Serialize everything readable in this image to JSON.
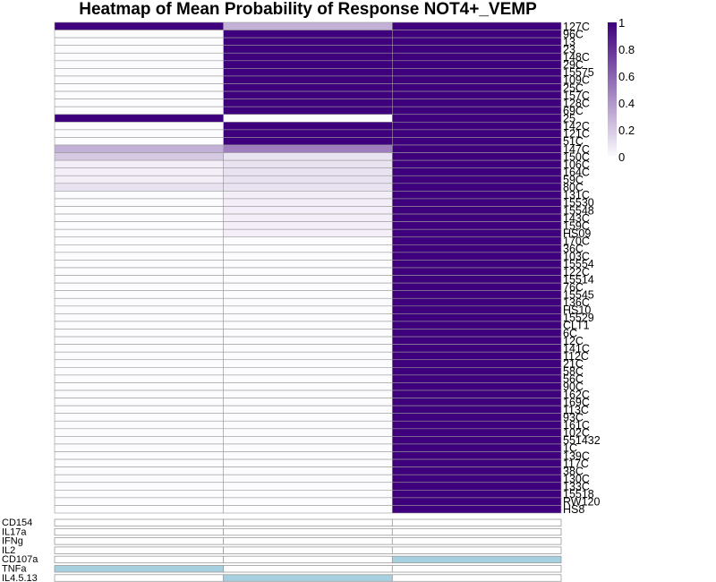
{
  "chart_data": {
    "type": "heatmap",
    "title": "Heatmap of Mean Probability of Response NOT4+_VEMP",
    "columns": 3,
    "rows": [
      "127C",
      "96C",
      "13",
      "23",
      "148C",
      "29C",
      "15575",
      "109C",
      "25C",
      "157C",
      "128C",
      "69C",
      "25",
      "142C",
      "121C",
      "51C",
      "147C",
      "150C",
      "106C",
      "164C",
      "59C",
      "80C",
      "131C",
      "15530",
      "15548",
      "143C",
      "159C",
      "HS09",
      "170C",
      "36C",
      "103C",
      "15554",
      "122C",
      "15514",
      "76C",
      "15545",
      "136C",
      "HS10",
      "15529",
      "CLT1",
      "6C",
      "12C",
      "141C",
      "112C",
      "21C",
      "58C",
      "56C",
      "90C",
      "162C",
      "169C",
      "113C",
      "93C",
      "161C",
      "102C",
      "551432",
      "1C",
      "139C",
      "117C",
      "38C",
      "130C",
      "133C",
      "15518",
      "RW120",
      "HS8"
    ],
    "values": [
      [
        1,
        0.3,
        1
      ],
      [
        0,
        1,
        1
      ],
      [
        0,
        1,
        1
      ],
      [
        0,
        1,
        1
      ],
      [
        0,
        1,
        1
      ],
      [
        0,
        1,
        1
      ],
      [
        0,
        1,
        1
      ],
      [
        0,
        1,
        1
      ],
      [
        0,
        1,
        1
      ],
      [
        0,
        1,
        1
      ],
      [
        0,
        1,
        1
      ],
      [
        0,
        1,
        1
      ],
      [
        1,
        0,
        1
      ],
      [
        0,
        1,
        1
      ],
      [
        0,
        1,
        1
      ],
      [
        0,
        1,
        1
      ],
      [
        0.3,
        0.5,
        1
      ],
      [
        0.2,
        0.1,
        1
      ],
      [
        0.05,
        0.1,
        1
      ],
      [
        0.05,
        0.1,
        1
      ],
      [
        0.05,
        0.1,
        1
      ],
      [
        0.1,
        0.1,
        1
      ],
      [
        0,
        0.05,
        1
      ],
      [
        0,
        0.05,
        1
      ],
      [
        0,
        0.05,
        1
      ],
      [
        0,
        0.05,
        1
      ],
      [
        0,
        0.05,
        1
      ],
      [
        0,
        0.05,
        1
      ],
      [
        0,
        0,
        1
      ],
      [
        0,
        0,
        1
      ],
      [
        0,
        0,
        1
      ],
      [
        0,
        0,
        1
      ],
      [
        0,
        0,
        1
      ],
      [
        0,
        0,
        1
      ],
      [
        0,
        0,
        1
      ],
      [
        0,
        0,
        1
      ],
      [
        0,
        0,
        1
      ],
      [
        0,
        0,
        1
      ],
      [
        0,
        0,
        1
      ],
      [
        0,
        0,
        1
      ],
      [
        0,
        0,
        1
      ],
      [
        0,
        0,
        1
      ],
      [
        0,
        0,
        1
      ],
      [
        0,
        0,
        1
      ],
      [
        0,
        0,
        1
      ],
      [
        0,
        0,
        1
      ],
      [
        0,
        0,
        1
      ],
      [
        0,
        0,
        1
      ],
      [
        0,
        0,
        1
      ],
      [
        0,
        0,
        1
      ],
      [
        0,
        0,
        1
      ],
      [
        0,
        0,
        1
      ],
      [
        0,
        0,
        1
      ],
      [
        0,
        0,
        1
      ],
      [
        0,
        0,
        1
      ],
      [
        0,
        0,
        1
      ],
      [
        0,
        0,
        1
      ],
      [
        0,
        0,
        1
      ],
      [
        0,
        0,
        1
      ],
      [
        0,
        0,
        1
      ],
      [
        0,
        0,
        1
      ],
      [
        0,
        0,
        1
      ],
      [
        0,
        0,
        1
      ],
      [
        0,
        0,
        1
      ]
    ],
    "legend": {
      "ticks": [
        "0",
        "0.2",
        "0.4",
        "0.6",
        "0.8",
        "1"
      ],
      "range": [
        0,
        1
      ],
      "low_color": "#fcfbfd",
      "high_color": "#3f007d"
    },
    "annotation_labels": [
      "CD154",
      "IL17a",
      "IFNg",
      "IL2",
      "CD107a",
      "TNFa",
      "IL4.5.13"
    ],
    "annotation_matrix": [
      [
        0,
        0,
        0
      ],
      [
        0,
        0,
        0
      ],
      [
        0,
        0,
        0
      ],
      [
        0,
        0,
        0
      ],
      [
        0,
        0,
        1
      ],
      [
        1,
        0,
        0
      ],
      [
        0,
        1,
        0
      ]
    ],
    "annotation_colors": {
      "on": "#a6cfdf",
      "off": "#ffffff"
    }
  }
}
